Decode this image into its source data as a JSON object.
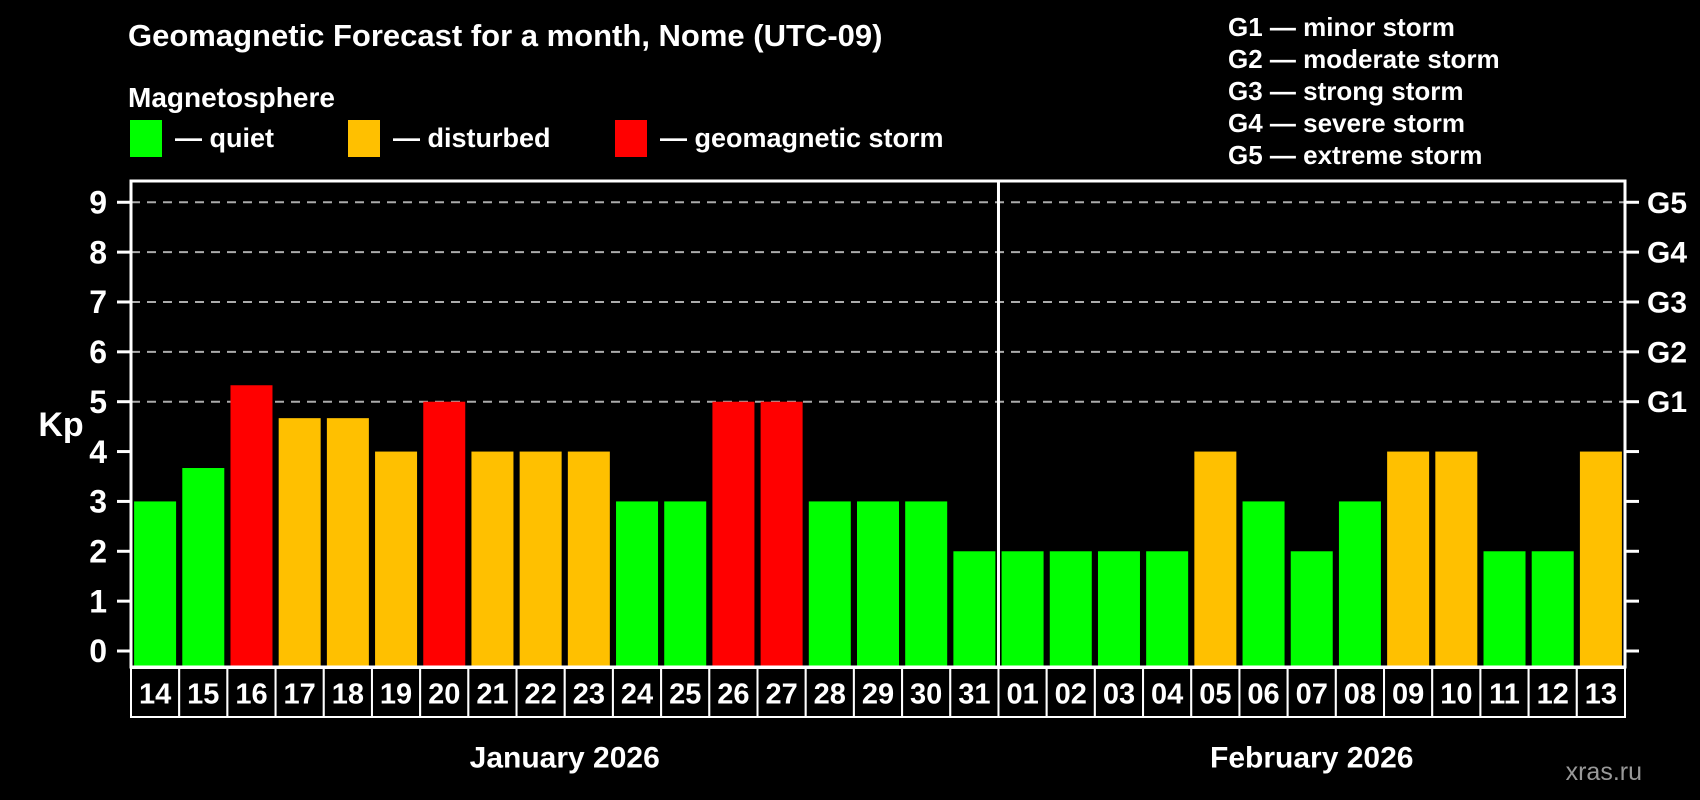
{
  "header": {
    "title": "Geomagnetic Forecast for a month, Nome (UTC-09)",
    "subtitle": "Magnetosphere"
  },
  "legend": {
    "items": [
      {
        "key": "quiet",
        "label": "— quiet",
        "color": "#00ff00"
      },
      {
        "key": "disturbed",
        "label": "— disturbed",
        "color": "#ffc000"
      },
      {
        "key": "storm",
        "label": "— geomagnetic storm",
        "color": "#ff0000"
      }
    ]
  },
  "storm_scale_legend": {
    "items": [
      {
        "label": "G1 — minor storm"
      },
      {
        "label": "G2 — moderate storm"
      },
      {
        "label": "G3 — strong storm"
      },
      {
        "label": "G4 — severe storm"
      },
      {
        "label": "G5 — extreme storm"
      }
    ]
  },
  "watermark": "xras.ru",
  "chart_data": {
    "type": "bar",
    "title": "Geomagnetic Forecast for a month, Nome (UTC-09)",
    "ylabel": "Kp",
    "ylim": [
      -0.3,
      9.4
    ],
    "yticks": [
      0,
      1,
      2,
      3,
      4,
      5,
      6,
      7,
      8,
      9
    ],
    "grid": "dashed horizontal lines at storm levels only",
    "gridlines_at_kp": [
      5,
      6,
      7,
      8,
      9
    ],
    "right_axis_labels": [
      {
        "kp": 5,
        "label": "G1"
      },
      {
        "kp": 6,
        "label": "G2"
      },
      {
        "kp": 7,
        "label": "G3"
      },
      {
        "kp": 8,
        "label": "G4"
      },
      {
        "kp": 9,
        "label": "G5"
      }
    ],
    "months": [
      {
        "label": "January 2026",
        "days": 18
      },
      {
        "label": "February 2026",
        "days": 13
      }
    ],
    "categories": [
      "14",
      "15",
      "16",
      "17",
      "18",
      "19",
      "20",
      "21",
      "22",
      "23",
      "24",
      "25",
      "26",
      "27",
      "28",
      "29",
      "30",
      "31",
      "01",
      "02",
      "03",
      "04",
      "05",
      "06",
      "07",
      "08",
      "09",
      "10",
      "11",
      "12",
      "13"
    ],
    "values": [
      3,
      3.67,
      5.33,
      4.67,
      4.67,
      4,
      5,
      4,
      4,
      4,
      3,
      3,
      5,
      5,
      3,
      3,
      3,
      2,
      2,
      2,
      2,
      2,
      4,
      3,
      2,
      3,
      4,
      4,
      2,
      2,
      4
    ],
    "statuses": [
      "quiet",
      "quiet",
      "storm",
      "disturbed",
      "disturbed",
      "disturbed",
      "storm",
      "disturbed",
      "disturbed",
      "disturbed",
      "quiet",
      "quiet",
      "storm",
      "storm",
      "quiet",
      "quiet",
      "quiet",
      "quiet",
      "quiet",
      "quiet",
      "quiet",
      "quiet",
      "disturbed",
      "quiet",
      "quiet",
      "quiet",
      "disturbed",
      "disturbed",
      "quiet",
      "quiet",
      "disturbed"
    ],
    "status_colors": {
      "quiet": "#00ff00",
      "disturbed": "#ffc000",
      "storm": "#ff0000"
    }
  }
}
